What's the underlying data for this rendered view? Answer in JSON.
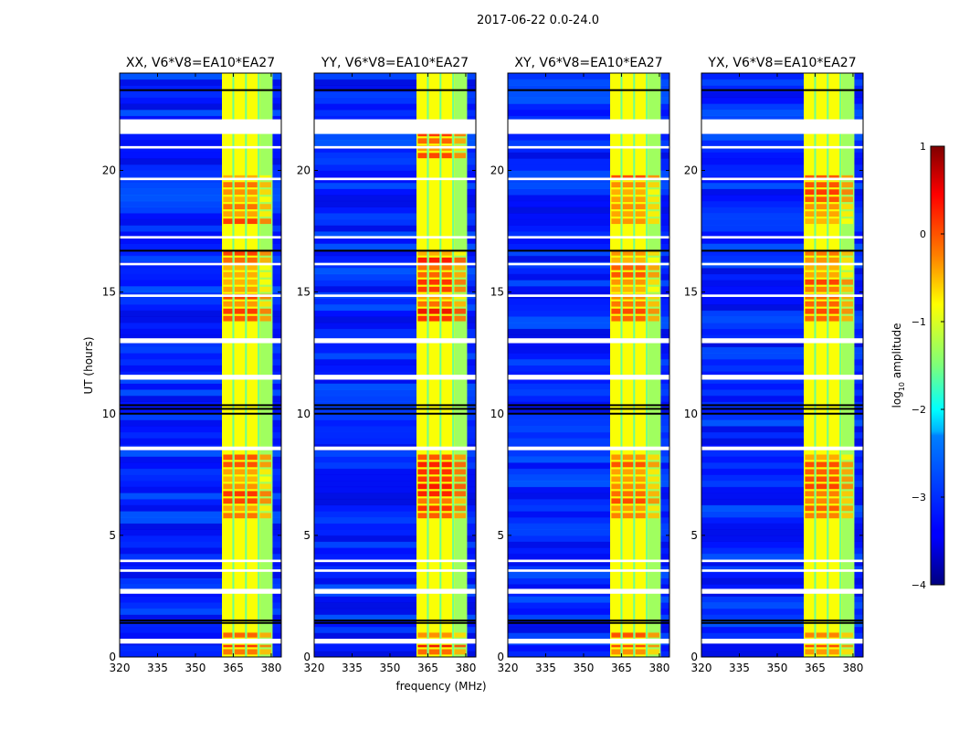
{
  "figure": {
    "suptitle": "2017-06-22 0.0-24.0",
    "xlabel": "frequency (MHz)",
    "ylabel": "UT (hours)"
  },
  "colorbar": {
    "label": "log",
    "label_sub": "10",
    "label_rest": " amplitude",
    "range": [
      -4,
      1
    ],
    "ticks": [
      1,
      0,
      -1,
      -2,
      -3,
      -4
    ],
    "tick_labels": [
      "1",
      "0",
      "−1",
      "−2",
      "−3",
      "−4"
    ],
    "colormap": "jet"
  },
  "chart_data": [
    {
      "type": "heatmap",
      "title": "XX, V6*V8=EA10*EA27",
      "xlabel": "",
      "ylabel": "UT (hours)",
      "xlim": [
        320,
        384
      ],
      "ylim": [
        0,
        24
      ],
      "x_ticks": [
        320,
        335,
        350,
        365,
        380
      ],
      "x_tick_labels": [
        "320",
        "335",
        "350",
        "365",
        "380"
      ],
      "y_ticks": [
        0,
        5,
        10,
        15,
        20
      ],
      "y_tick_labels": [
        "0",
        "5",
        "10",
        "15",
        "20"
      ],
      "background_log_amplitude": -3.2,
      "active_band_mhz": [
        360.5,
        380.5
      ],
      "active_log_amplitude": -0.9,
      "channel_edges_mhz": [
        365,
        370,
        375
      ],
      "bright_intervals_ut": [
        [
          0.1,
          0.5
        ],
        [
          0.8,
          1.0
        ],
        [
          5.7,
          8.4
        ],
        [
          13.8,
          16.8
        ],
        [
          17.8,
          19.8
        ]
      ],
      "peak_log_amplitude": 0.3,
      "flagged_intervals_ut": [
        [
          0.55,
          0.75
        ],
        [
          2.6,
          2.8
        ],
        [
          3.5,
          3.6
        ],
        [
          3.9,
          4.0
        ],
        [
          8.5,
          8.65
        ],
        [
          11.4,
          11.6
        ],
        [
          12.9,
          13.1
        ],
        [
          14.8,
          14.9
        ],
        [
          16.1,
          16.2
        ],
        [
          17.2,
          17.3
        ],
        [
          19.6,
          19.7
        ],
        [
          20.9,
          21.0
        ],
        [
          21.5,
          22.1
        ]
      ],
      "dark_flag_lines_ut": [
        1.4,
        1.5,
        10.0,
        10.2,
        10.35,
        16.7,
        23.3
      ]
    },
    {
      "type": "heatmap",
      "title": "YY, V6*V8=EA10*EA27",
      "xlabel": "frequency (MHz)",
      "ylabel": "",
      "xlim": [
        320,
        384
      ],
      "ylim": [
        0,
        24
      ],
      "x_ticks": [
        320,
        335,
        350,
        365,
        380
      ],
      "x_tick_labels": [
        "320",
        "335",
        "350",
        "365",
        "380"
      ],
      "y_ticks": [
        0,
        5,
        10,
        15,
        20
      ],
      "y_tick_labels": [
        "0",
        "5",
        "10",
        "15",
        "20"
      ],
      "background_log_amplitude": -3.2,
      "active_band_mhz": [
        360.5,
        380.5
      ],
      "active_log_amplitude": -0.9,
      "channel_edges_mhz": [
        365,
        370,
        375
      ],
      "bright_intervals_ut": [
        [
          0.1,
          0.5
        ],
        [
          0.8,
          1.0
        ],
        [
          5.7,
          8.4
        ],
        [
          13.8,
          16.8
        ],
        [
          20.5,
          21.5
        ]
      ],
      "peak_log_amplitude": 0.6,
      "flagged_intervals_ut": [
        [
          0.55,
          0.75
        ],
        [
          2.6,
          2.8
        ],
        [
          3.5,
          3.6
        ],
        [
          3.9,
          4.0
        ],
        [
          8.5,
          8.65
        ],
        [
          11.4,
          11.6
        ],
        [
          12.9,
          13.1
        ],
        [
          14.8,
          14.9
        ],
        [
          16.1,
          16.2
        ],
        [
          17.2,
          17.3
        ],
        [
          19.6,
          19.7
        ],
        [
          20.9,
          21.0
        ],
        [
          21.5,
          22.1
        ]
      ],
      "dark_flag_lines_ut": [
        1.4,
        1.5,
        10.0,
        10.2,
        10.35,
        16.7,
        23.3
      ]
    },
    {
      "type": "heatmap",
      "title": "XY, V6*V8=EA10*EA27",
      "xlabel": "",
      "ylabel": "",
      "xlim": [
        320,
        384
      ],
      "ylim": [
        0,
        24
      ],
      "x_ticks": [
        320,
        335,
        350,
        365,
        380
      ],
      "x_tick_labels": [
        "320",
        "335",
        "350",
        "365",
        "380"
      ],
      "y_ticks": [
        0,
        5,
        10,
        15,
        20
      ],
      "y_tick_labels": [
        "0",
        "5",
        "10",
        "15",
        "20"
      ],
      "background_log_amplitude": -3.2,
      "active_band_mhz": [
        360.5,
        380.5
      ],
      "active_log_amplitude": -0.9,
      "channel_edges_mhz": [
        365,
        370,
        375
      ],
      "bright_intervals_ut": [
        [
          0.1,
          0.5
        ],
        [
          0.8,
          1.0
        ],
        [
          5.7,
          8.4
        ],
        [
          13.8,
          16.8
        ],
        [
          17.8,
          19.8
        ]
      ],
      "peak_log_amplitude": 0.2,
      "flagged_intervals_ut": [
        [
          0.55,
          0.75
        ],
        [
          2.6,
          2.8
        ],
        [
          3.5,
          3.6
        ],
        [
          3.9,
          4.0
        ],
        [
          8.5,
          8.65
        ],
        [
          11.4,
          11.6
        ],
        [
          12.9,
          13.1
        ],
        [
          14.8,
          14.9
        ],
        [
          16.1,
          16.2
        ],
        [
          17.2,
          17.3
        ],
        [
          19.6,
          19.7
        ],
        [
          20.9,
          21.0
        ],
        [
          21.5,
          22.1
        ]
      ],
      "dark_flag_lines_ut": [
        1.4,
        1.5,
        10.0,
        10.2,
        10.35,
        16.7,
        23.3
      ]
    },
    {
      "type": "heatmap",
      "title": "YX, V6*V8=EA10*EA27",
      "xlabel": "",
      "ylabel": "",
      "xlim": [
        320,
        384
      ],
      "ylim": [
        0,
        24
      ],
      "x_ticks": [
        320,
        335,
        350,
        365,
        380
      ],
      "x_tick_labels": [
        "320",
        "335",
        "350",
        "365",
        "380"
      ],
      "y_ticks": [
        0,
        5,
        10,
        15,
        20
      ],
      "y_tick_labels": [
        "0",
        "5",
        "10",
        "15",
        "20"
      ],
      "background_log_amplitude": -3.2,
      "active_band_mhz": [
        360.5,
        380.5
      ],
      "active_log_amplitude": -0.9,
      "channel_edges_mhz": [
        365,
        370,
        375
      ],
      "bright_intervals_ut": [
        [
          0.1,
          0.5
        ],
        [
          0.8,
          1.0
        ],
        [
          5.7,
          8.4
        ],
        [
          13.8,
          16.8
        ],
        [
          17.8,
          19.8
        ]
      ],
      "peak_log_amplitude": 0.2,
      "flagged_intervals_ut": [
        [
          0.55,
          0.75
        ],
        [
          2.6,
          2.8
        ],
        [
          3.5,
          3.6
        ],
        [
          3.9,
          4.0
        ],
        [
          8.5,
          8.65
        ],
        [
          11.4,
          11.6
        ],
        [
          12.9,
          13.1
        ],
        [
          14.8,
          14.9
        ],
        [
          16.1,
          16.2
        ],
        [
          17.2,
          17.3
        ],
        [
          19.6,
          19.7
        ],
        [
          20.9,
          21.0
        ],
        [
          21.5,
          22.1
        ]
      ],
      "dark_flag_lines_ut": [
        1.4,
        1.5,
        10.0,
        10.2,
        10.35,
        16.7,
        23.3
      ]
    }
  ]
}
